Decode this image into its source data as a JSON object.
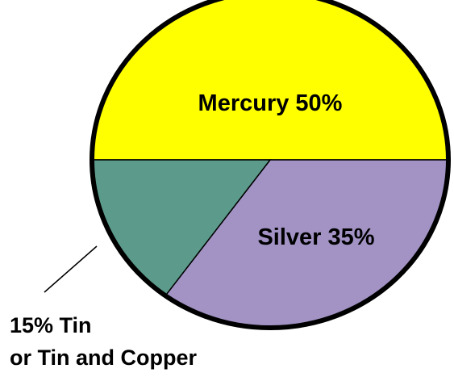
{
  "chart_data": {
    "type": "pie",
    "values": [
      50,
      35,
      15
    ],
    "value_labels": [
      "Mercury 50%",
      "Silver 35%",
      [
        "15% Tin",
        "or Tin and Copper"
      ]
    ],
    "colors": [
      "#ffff00",
      "#a293c4",
      "#5c9b8b"
    ]
  }
}
